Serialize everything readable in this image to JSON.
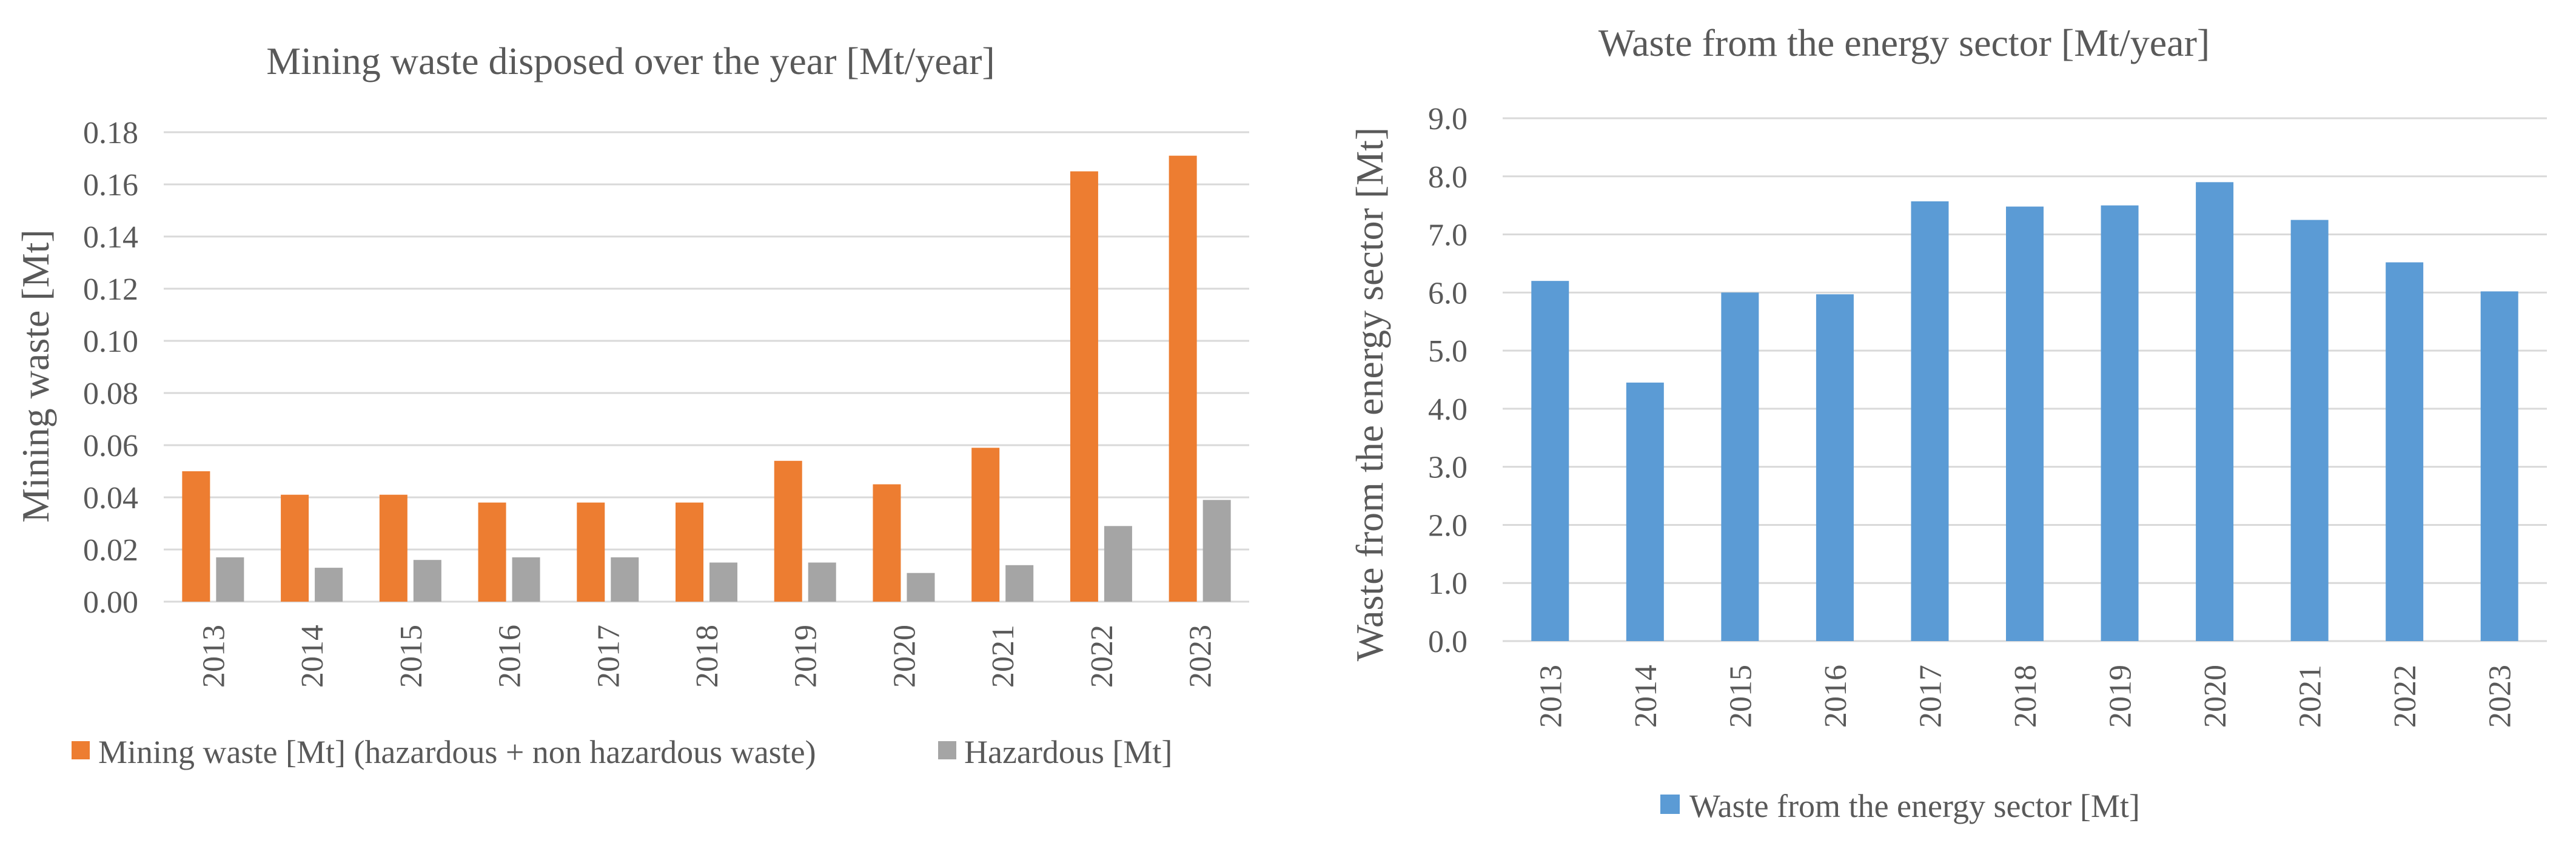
{
  "colors": {
    "mining": "#ed7d31",
    "hazardous": "#a5a5a5",
    "energy": "#5b9bd5",
    "grid": "#d9d9d9",
    "text": "#595959"
  },
  "chart_data": [
    {
      "type": "bar",
      "title": "Mining waste disposed over the year [Mt/year]",
      "xlabel": "",
      "ylabel": "Mining waste [Mt]",
      "ylim": [
        0,
        0.18
      ],
      "yticks": [
        "0.00",
        "0.02",
        "0.04",
        "0.06",
        "0.08",
        "0.10",
        "0.12",
        "0.14",
        "0.16",
        "0.18"
      ],
      "categories": [
        "2013",
        "2014",
        "2015",
        "2016",
        "2017",
        "2018",
        "2019",
        "2020",
        "2021",
        "2022",
        "2023"
      ],
      "series": [
        {
          "name": "Mining waste [Mt] (hazardous + non hazardous waste)",
          "color": "#ed7d31",
          "values": [
            0.05,
            0.041,
            0.041,
            0.038,
            0.038,
            0.038,
            0.054,
            0.045,
            0.059,
            0.165,
            0.171
          ]
        },
        {
          "name": "Hazardous [Mt]",
          "color": "#a5a5a5",
          "values": [
            0.017,
            0.013,
            0.016,
            0.017,
            0.017,
            0.015,
            0.015,
            0.011,
            0.014,
            0.029,
            0.039
          ]
        }
      ],
      "legend": "bottom",
      "grid": true
    },
    {
      "type": "bar",
      "title": "Waste from the energy sector [Mt/year]",
      "xlabel": "",
      "ylabel": "Waste from the energy sector [Mt]",
      "ylim": [
        0,
        9
      ],
      "yticks": [
        "0.0",
        "1.0",
        "2.0",
        "3.0",
        "4.0",
        "5.0",
        "6.0",
        "7.0",
        "8.0",
        "9.0"
      ],
      "categories": [
        "2013",
        "2014",
        "2015",
        "2016",
        "2017",
        "2018",
        "2019",
        "2020",
        "2021",
        "2022",
        "2023"
      ],
      "series": [
        {
          "name": "Waste from the energy sector [Mt]",
          "color": "#5b9bd5",
          "values": [
            6.2,
            4.45,
            6.0,
            5.97,
            7.57,
            7.48,
            7.5,
            7.9,
            7.25,
            6.52,
            6.02
          ]
        }
      ],
      "legend": "bottom",
      "grid": true
    }
  ]
}
